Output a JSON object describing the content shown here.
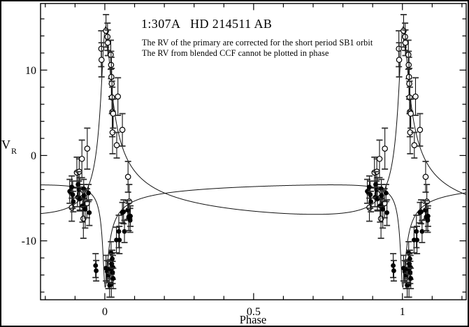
{
  "figure": {
    "title": "1:307A   HD 214511 AB",
    "note_line1": "The RV of the primary are corrected for the short period SB1 orbit",
    "note_line2": "The RV from blended CCF cannot be plotted in phase",
    "colors": {
      "foreground": "#000000",
      "background": "#ffffff"
    }
  },
  "chart_data": {
    "type": "scatter",
    "title": "1:307A HD 214511 AB",
    "xlabel": "Phase",
    "ylabel": {
      "main": "V",
      "sub": "R"
    },
    "xlim": [
      -0.216,
      1.2143
    ],
    "ylim": [
      -16.9,
      17.8
    ],
    "grid": false,
    "legend": "none",
    "x_ticks": {
      "major": [
        {
          "value": 0,
          "label": "0"
        },
        {
          "value": 0.5,
          "label": "0.5"
        },
        {
          "value": 1,
          "label": "1"
        }
      ],
      "minor_step": 0.1
    },
    "y_ticks": {
      "major": [
        {
          "value": 10,
          "label": "10"
        },
        {
          "value": 0,
          "label": "0"
        },
        {
          "value": -10,
          "label": "-10"
        }
      ],
      "minor_step": 2
    },
    "plot_note": "each observation is plotted at phase p and p+1",
    "curves": [
      {
        "name": "primary-orbit-curve",
        "gamma": -4.4,
        "K": 6.0,
        "e": 0.87,
        "omega_deg": 165,
        "sign": 1,
        "periastron_phase": 0
      },
      {
        "name": "secondary-orbit-curve",
        "gamma": -4.4,
        "K": 11.0,
        "e": 0.8,
        "omega_deg": 165,
        "sign": -1,
        "periastron_phase": 0
      }
    ],
    "series": [
      {
        "name": "secondary-RV-observations",
        "marker": "open-circle",
        "points": [
          [
            -0.111,
            -6.1,
            1.6
          ],
          [
            -0.094,
            -2.0,
            1.8
          ],
          [
            -0.086,
            -1.9,
            1.5
          ],
          [
            -0.084,
            -4.5,
            1.9
          ],
          [
            -0.077,
            -0.4,
            2.2
          ],
          [
            -0.072,
            -7.4,
            2.3
          ],
          [
            -0.06,
            -5.6,
            1.7
          ],
          [
            -0.059,
            0.8,
            2.4
          ],
          [
            -0.012,
            12.5,
            2.1
          ],
          [
            -0.011,
            11.2,
            2.0
          ],
          [
            0.004,
            14.6,
            1.9
          ],
          [
            0.009,
            13.9,
            1.6
          ],
          [
            0.01,
            13.2,
            1.5
          ],
          [
            0.02,
            11.8,
            1.7
          ],
          [
            0.021,
            10.6,
            1.6
          ],
          [
            0.022,
            9.2,
            2.3
          ],
          [
            0.023,
            8.4,
            1.8
          ],
          [
            0.024,
            6.8,
            1.9
          ],
          [
            0.025,
            5.1,
            2.9
          ],
          [
            0.026,
            2.7,
            2.5
          ],
          [
            0.028,
            4.9,
            1.7
          ],
          [
            0.04,
            1.2,
            1.5
          ],
          [
            0.044,
            6.9,
            2.2
          ],
          [
            0.059,
            3.0,
            1.9
          ],
          [
            0.078,
            -2.5,
            1.8
          ],
          [
            0.082,
            -5.4,
            2.0
          ]
        ]
      },
      {
        "name": "primary-RV-observations",
        "marker": "filled-circle",
        "points": [
          [
            -0.118,
            -4.2,
            1.4
          ],
          [
            -0.111,
            -3.7,
            1.3
          ],
          [
            -0.108,
            -4.6,
            1.6
          ],
          [
            -0.106,
            -5.4,
            1.2
          ],
          [
            -0.092,
            -4.9,
            1.1
          ],
          [
            -0.09,
            -3.4,
            1.5
          ],
          [
            -0.087,
            -4.0,
            1.0
          ],
          [
            -0.084,
            -5.1,
            1.4
          ],
          [
            -0.075,
            -5.9,
            1.9
          ],
          [
            -0.071,
            -3.9,
            1.1
          ],
          [
            -0.07,
            -4.7,
            1.3
          ],
          [
            -0.066,
            -6.3,
            2.2
          ],
          [
            -0.055,
            -4.4,
            1.0
          ],
          [
            -0.052,
            -6.7,
            1.5
          ],
          [
            -0.031,
            -12.9,
            1.4
          ],
          [
            -0.029,
            -13.5,
            1.2
          ],
          [
            0.004,
            -13.2,
            1.5
          ],
          [
            0.008,
            -13.6,
            1.3
          ],
          [
            0.012,
            -14.0,
            1.6
          ],
          [
            0.016,
            -15.2,
            1.4
          ],
          [
            0.018,
            -13.3,
            1.1
          ],
          [
            0.021,
            -11.4,
            1.3
          ],
          [
            0.022,
            -15.1,
            1.5
          ],
          [
            0.023,
            -12.7,
            1.2
          ],
          [
            0.025,
            -12.1,
            1.0
          ],
          [
            0.026,
            -13.7,
            1.3
          ],
          [
            0.027,
            -13.1,
            1.4
          ],
          [
            0.028,
            -14.4,
            1.2
          ],
          [
            0.039,
            -9.9,
            1.5
          ],
          [
            0.047,
            -8.9,
            1.9
          ],
          [
            0.049,
            -9.9,
            1.6
          ],
          [
            0.059,
            -6.7,
            1.2
          ],
          [
            0.063,
            -6.6,
            1.4
          ],
          [
            0.066,
            -8.9,
            1.3
          ],
          [
            0.077,
            -6.4,
            1.1
          ],
          [
            0.08,
            -7.2,
            1.6
          ],
          [
            0.085,
            -7.6,
            1.4
          ],
          [
            0.086,
            -7.1,
            1.2
          ]
        ]
      }
    ]
  }
}
